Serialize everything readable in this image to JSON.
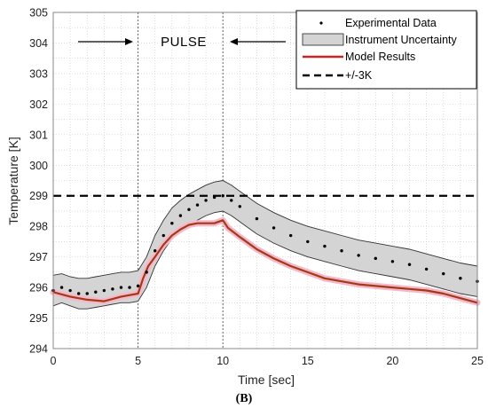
{
  "chart_data": {
    "type": "line",
    "xlabel": "Time [sec]",
    "ylabel": "Temperature [K]",
    "xlim": [
      0,
      25
    ],
    "ylim": [
      294,
      305
    ],
    "xticks": [
      "0",
      "5",
      "10",
      "15",
      "20",
      "25"
    ],
    "yticks": [
      "294",
      "295",
      "296",
      "297",
      "298",
      "299",
      "300",
      "301",
      "302",
      "303",
      "304",
      "305"
    ],
    "grid": "dotted minor grid",
    "legend_position": "top-right",
    "annotation": "PULSE",
    "pulse_markers_x": [
      5,
      10
    ],
    "series": [
      {
        "name": "Experimental Data",
        "style": "dots",
        "x": [
          0,
          0.5,
          1,
          1.5,
          2,
          2.5,
          3,
          3.5,
          4,
          4.5,
          5,
          5.5,
          6,
          6.5,
          7,
          7.5,
          8,
          8.5,
          9,
          9.5,
          10,
          10.5,
          11,
          12,
          13,
          14,
          15,
          16,
          17,
          18,
          19,
          20,
          21,
          22,
          23,
          24,
          25
        ],
        "y": [
          295.9,
          296.0,
          295.9,
          295.8,
          295.8,
          295.85,
          295.9,
          295.95,
          296.0,
          296.0,
          296.05,
          296.5,
          297.2,
          297.7,
          298.1,
          298.35,
          298.55,
          298.7,
          298.85,
          298.95,
          299.0,
          298.85,
          298.65,
          298.25,
          297.95,
          297.7,
          297.5,
          297.35,
          297.2,
          297.05,
          296.95,
          296.85,
          296.75,
          296.6,
          296.45,
          296.3,
          296.2
        ]
      },
      {
        "name": "Instrument Uncertainty",
        "style": "band",
        "x": [
          0,
          0.5,
          1,
          1.5,
          2,
          2.5,
          3,
          3.5,
          4,
          4.5,
          5,
          5.5,
          6,
          6.5,
          7,
          7.5,
          8,
          8.5,
          9,
          9.5,
          10,
          10.5,
          11,
          12,
          13,
          14,
          15,
          16,
          17,
          18,
          19,
          20,
          21,
          22,
          23,
          24,
          25
        ],
        "upper": [
          296.4,
          296.45,
          296.35,
          296.3,
          296.3,
          296.35,
          296.4,
          296.45,
          296.5,
          296.5,
          296.55,
          297.0,
          297.7,
          298.2,
          298.6,
          298.85,
          299.05,
          299.2,
          299.35,
          299.45,
          299.5,
          299.35,
          299.15,
          298.75,
          298.45,
          298.2,
          298.0,
          297.85,
          297.7,
          297.55,
          297.45,
          297.35,
          297.25,
          297.1,
          296.95,
          296.8,
          296.7
        ],
        "lower": [
          295.4,
          295.5,
          295.4,
          295.3,
          295.3,
          295.35,
          295.4,
          295.45,
          295.5,
          295.5,
          295.55,
          296.0,
          296.7,
          297.2,
          297.6,
          297.85,
          298.05,
          298.2,
          298.35,
          298.45,
          298.5,
          298.35,
          298.15,
          297.75,
          297.45,
          297.2,
          297.0,
          296.85,
          296.7,
          296.55,
          296.45,
          296.35,
          296.25,
          296.1,
          295.95,
          295.8,
          295.7
        ]
      },
      {
        "name": "Model Results",
        "style": "solid",
        "color": "#cc2222",
        "x": [
          0,
          1,
          2,
          3,
          4,
          5,
          5.3,
          5.6,
          6,
          6.5,
          7,
          7.5,
          8,
          8.5,
          9,
          9.5,
          10,
          10.3,
          11,
          12,
          13,
          14,
          15,
          16,
          17,
          18,
          19,
          20,
          21,
          22,
          23,
          24,
          25
        ],
        "y": [
          295.85,
          295.7,
          295.6,
          295.55,
          295.7,
          295.8,
          296.3,
          296.7,
          297.0,
          297.4,
          297.7,
          297.9,
          298.05,
          298.1,
          298.1,
          298.1,
          298.2,
          297.95,
          297.65,
          297.25,
          296.95,
          296.7,
          296.5,
          296.3,
          296.2,
          296.1,
          296.05,
          296.0,
          295.95,
          295.9,
          295.8,
          295.65,
          295.5
        ]
      },
      {
        "name": "+/-3K",
        "style": "dashed",
        "color": "#000000",
        "x": [
          0,
          25
        ],
        "y": [
          299,
          299
        ]
      }
    ]
  },
  "caption": "(B)"
}
